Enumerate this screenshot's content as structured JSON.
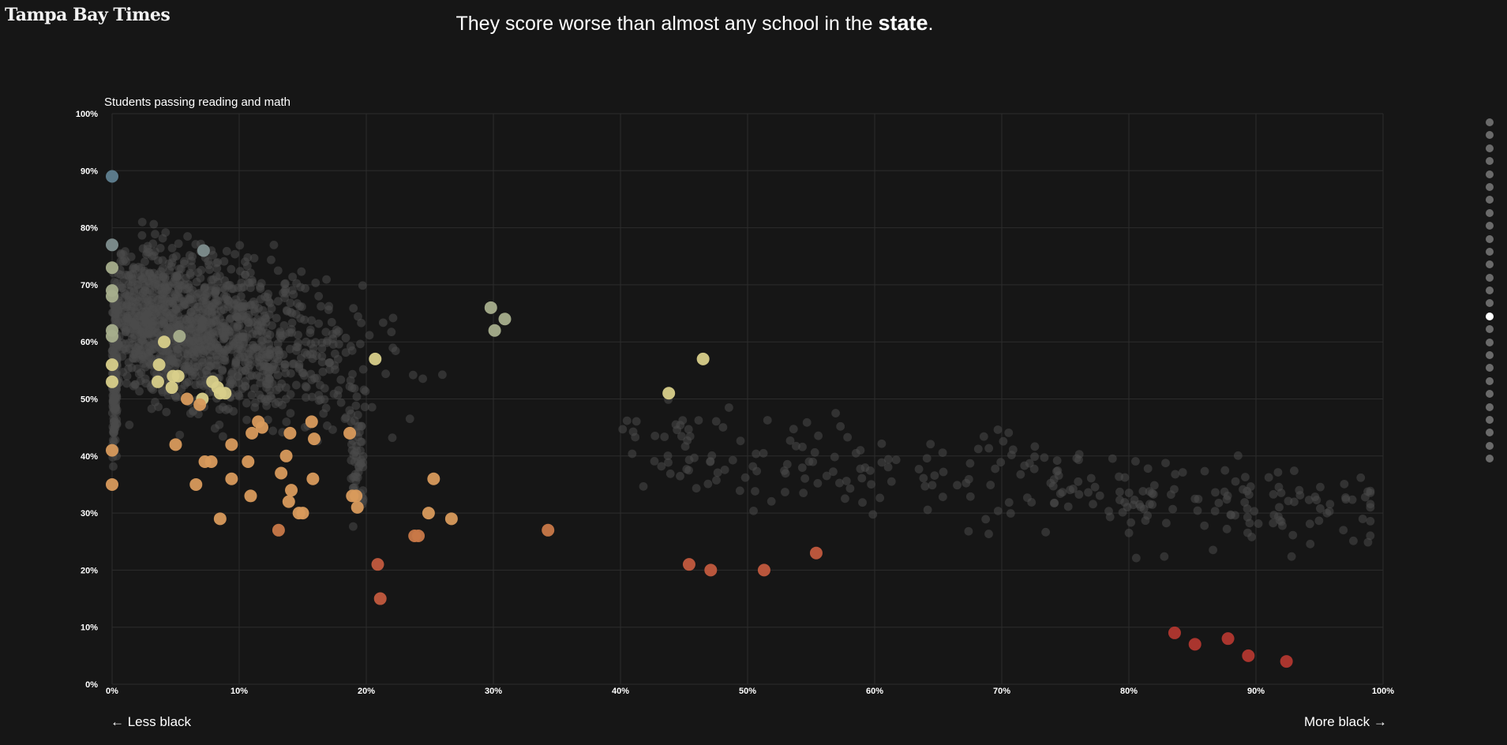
{
  "brand": "Tampa Bay Times",
  "headline": {
    "prefix": "They score worse than almost any school in the ",
    "emphasis": "state",
    "suffix": "."
  },
  "nav": {
    "left": "← Less black",
    "right": "More black →"
  },
  "steps": {
    "count": 27,
    "active_index": 15
  },
  "chart_data": {
    "type": "scatter",
    "title": "Students passing reading and math",
    "xlabel": "",
    "ylabel": "",
    "xlim": [
      0,
      100
    ],
    "ylim": [
      0,
      100
    ],
    "x_ticks": [
      "0%",
      "10%",
      "20%",
      "30%",
      "40%",
      "50%",
      "60%",
      "70%",
      "80%",
      "90%",
      "100%"
    ],
    "y_ticks": [
      "0%",
      "10%",
      "20%",
      "30%",
      "40%",
      "50%",
      "60%",
      "70%",
      "80%",
      "90%",
      "100%"
    ],
    "grid": true,
    "colors": {
      "background_points": "#4a4a4a",
      "blue": "#5f7f90",
      "gray_blue": "#7e8e8e",
      "sage": "#a7ae8c",
      "yellow": "#d8cf8a",
      "orange": "#d89a5c",
      "orange_dark": "#c87848",
      "red_orange": "#c25a3e",
      "red": "#b2372f"
    },
    "highlighted": [
      {
        "x": 0,
        "y": 89,
        "c": "blue"
      },
      {
        "x": 7.2,
        "y": 76,
        "c": "gray_blue"
      },
      {
        "x": 0,
        "y": 77,
        "c": "gray_blue"
      },
      {
        "x": 0,
        "y": 73,
        "c": "sage"
      },
      {
        "x": 0,
        "y": 69,
        "c": "sage"
      },
      {
        "x": 0,
        "y": 68,
        "c": "sage"
      },
      {
        "x": 0,
        "y": 62,
        "c": "sage"
      },
      {
        "x": 0,
        "y": 61,
        "c": "sage"
      },
      {
        "x": 0,
        "y": 56,
        "c": "yellow"
      },
      {
        "x": 0,
        "y": 53,
        "c": "yellow"
      },
      {
        "x": 0,
        "y": 41,
        "c": "orange"
      },
      {
        "x": 0,
        "y": 35,
        "c": "orange"
      },
      {
        "x": 4.1,
        "y": 60,
        "c": "yellow"
      },
      {
        "x": 5.3,
        "y": 61,
        "c": "sage"
      },
      {
        "x": 3.7,
        "y": 56,
        "c": "yellow"
      },
      {
        "x": 3.6,
        "y": 53,
        "c": "yellow"
      },
      {
        "x": 4.8,
        "y": 54,
        "c": "yellow"
      },
      {
        "x": 5.2,
        "y": 54,
        "c": "yellow"
      },
      {
        "x": 4.7,
        "y": 52,
        "c": "yellow"
      },
      {
        "x": 7.9,
        "y": 53,
        "c": "yellow"
      },
      {
        "x": 8.3,
        "y": 52,
        "c": "yellow"
      },
      {
        "x": 8.5,
        "y": 51,
        "c": "yellow"
      },
      {
        "x": 8.9,
        "y": 51,
        "c": "yellow"
      },
      {
        "x": 7.1,
        "y": 50,
        "c": "yellow"
      },
      {
        "x": 5.9,
        "y": 50,
        "c": "orange"
      },
      {
        "x": 6.9,
        "y": 49,
        "c": "orange"
      },
      {
        "x": 20.7,
        "y": 57,
        "c": "yellow"
      },
      {
        "x": 29.8,
        "y": 66,
        "c": "sage"
      },
      {
        "x": 30.9,
        "y": 64,
        "c": "sage"
      },
      {
        "x": 30.1,
        "y": 62,
        "c": "sage"
      },
      {
        "x": 46.5,
        "y": 57,
        "c": "yellow"
      },
      {
        "x": 43.8,
        "y": 51,
        "c": "yellow"
      },
      {
        "x": 5.0,
        "y": 42,
        "c": "orange"
      },
      {
        "x": 9.4,
        "y": 42,
        "c": "orange"
      },
      {
        "x": 11.5,
        "y": 46,
        "c": "orange"
      },
      {
        "x": 11.8,
        "y": 45,
        "c": "orange"
      },
      {
        "x": 11.0,
        "y": 44,
        "c": "orange"
      },
      {
        "x": 14.0,
        "y": 44,
        "c": "orange"
      },
      {
        "x": 15.7,
        "y": 46,
        "c": "orange"
      },
      {
        "x": 15.9,
        "y": 43,
        "c": "orange"
      },
      {
        "x": 18.7,
        "y": 44,
        "c": "orange"
      },
      {
        "x": 13.7,
        "y": 40,
        "c": "orange"
      },
      {
        "x": 7.3,
        "y": 39,
        "c": "orange"
      },
      {
        "x": 7.8,
        "y": 39,
        "c": "orange"
      },
      {
        "x": 10.7,
        "y": 39,
        "c": "orange"
      },
      {
        "x": 9.4,
        "y": 36,
        "c": "orange"
      },
      {
        "x": 13.3,
        "y": 37,
        "c": "orange"
      },
      {
        "x": 15.8,
        "y": 36,
        "c": "orange"
      },
      {
        "x": 25.3,
        "y": 36,
        "c": "orange"
      },
      {
        "x": 6.6,
        "y": 35,
        "c": "orange"
      },
      {
        "x": 14.1,
        "y": 34,
        "c": "orange"
      },
      {
        "x": 10.9,
        "y": 33,
        "c": "orange"
      },
      {
        "x": 18.9,
        "y": 33,
        "c": "orange"
      },
      {
        "x": 19.2,
        "y": 33,
        "c": "orange"
      },
      {
        "x": 13.9,
        "y": 32,
        "c": "orange"
      },
      {
        "x": 19.3,
        "y": 31,
        "c": "orange"
      },
      {
        "x": 24.9,
        "y": 30,
        "c": "orange"
      },
      {
        "x": 14.7,
        "y": 30,
        "c": "orange"
      },
      {
        "x": 15.0,
        "y": 30,
        "c": "orange"
      },
      {
        "x": 8.5,
        "y": 29,
        "c": "orange"
      },
      {
        "x": 26.7,
        "y": 29,
        "c": "orange"
      },
      {
        "x": 13.1,
        "y": 27,
        "c": "orange_dark"
      },
      {
        "x": 34.3,
        "y": 27,
        "c": "orange_dark"
      },
      {
        "x": 23.8,
        "y": 26,
        "c": "orange_dark"
      },
      {
        "x": 24.1,
        "y": 26,
        "c": "orange_dark"
      },
      {
        "x": 20.9,
        "y": 21,
        "c": "red_orange"
      },
      {
        "x": 21.1,
        "y": 15,
        "c": "red_orange"
      },
      {
        "x": 45.4,
        "y": 21,
        "c": "red_orange"
      },
      {
        "x": 47.1,
        "y": 20,
        "c": "red_orange"
      },
      {
        "x": 51.3,
        "y": 20,
        "c": "red_orange"
      },
      {
        "x": 55.4,
        "y": 23,
        "c": "red_orange"
      },
      {
        "x": 83.6,
        "y": 9,
        "c": "red"
      },
      {
        "x": 85.2,
        "y": 7,
        "c": "red"
      },
      {
        "x": 87.8,
        "y": 8,
        "c": "red"
      },
      {
        "x": 89.4,
        "y": 5,
        "c": "red"
      },
      {
        "x": 92.4,
        "y": 4,
        "c": "red"
      }
    ]
  }
}
